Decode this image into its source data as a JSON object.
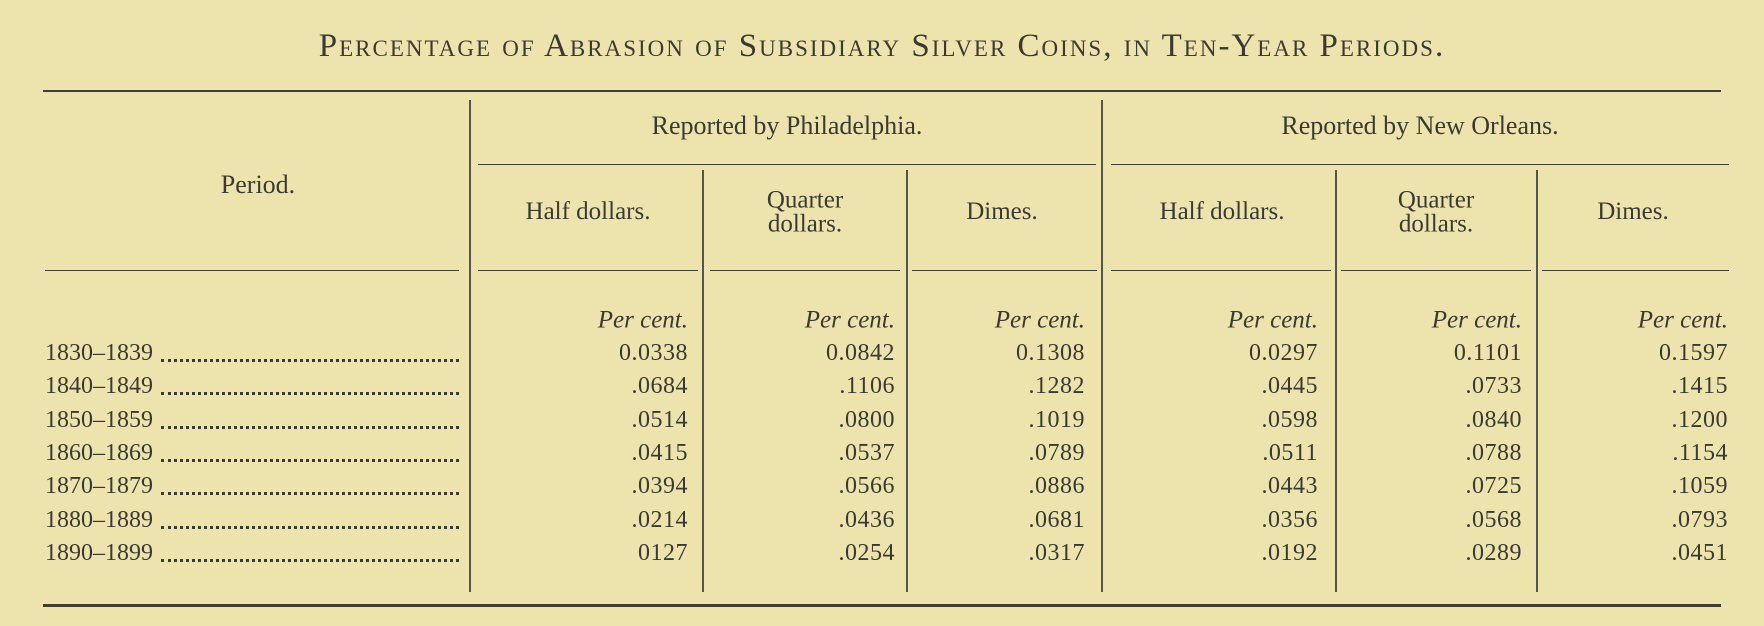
{
  "title": "Percentage of Abrasion of Subsidiary Silver Coins, in Ten-Year Periods.",
  "table": {
    "period_header": "Period.",
    "unit": "Per cent.",
    "groups": [
      {
        "label": "Reported by Philadelphia.",
        "columns": [
          "Half dollars.",
          "Quarter dollars.",
          "Dimes."
        ]
      },
      {
        "label": "Reported by New Orleans.",
        "columns": [
          "Half dollars.",
          "Quarter dollars.",
          "Dimes."
        ]
      }
    ],
    "rows": [
      {
        "period": "1830–1839",
        "values": [
          "0.0338",
          "0.0842",
          "0.1308",
          "0.0297",
          "0.1101",
          "0.1597"
        ]
      },
      {
        "period": "1840–1849",
        "values": [
          ".0684",
          ".1106",
          ".1282",
          ".0445",
          ".0733",
          ".1415"
        ]
      },
      {
        "period": "1850–1859",
        "values": [
          ".0514",
          ".0800",
          ".1019",
          ".0598",
          ".0840",
          ".1200"
        ]
      },
      {
        "period": "1860–1869",
        "values": [
          ".0415",
          ".0537",
          ".0789",
          ".0511",
          ".0788",
          ".1154"
        ]
      },
      {
        "period": "1870–1879",
        "values": [
          ".0394",
          ".0566",
          ".0886",
          ".0443",
          ".0725",
          ".1059"
        ]
      },
      {
        "period": "1880–1889",
        "values": [
          ".0214",
          ".0436",
          ".0681",
          ".0356",
          ".0568",
          ".0793"
        ]
      },
      {
        "period": "1890–1899",
        "values": [
          "0127",
          ".0254",
          ".0317",
          ".0192",
          ".0289",
          ".0451"
        ]
      }
    ]
  }
}
